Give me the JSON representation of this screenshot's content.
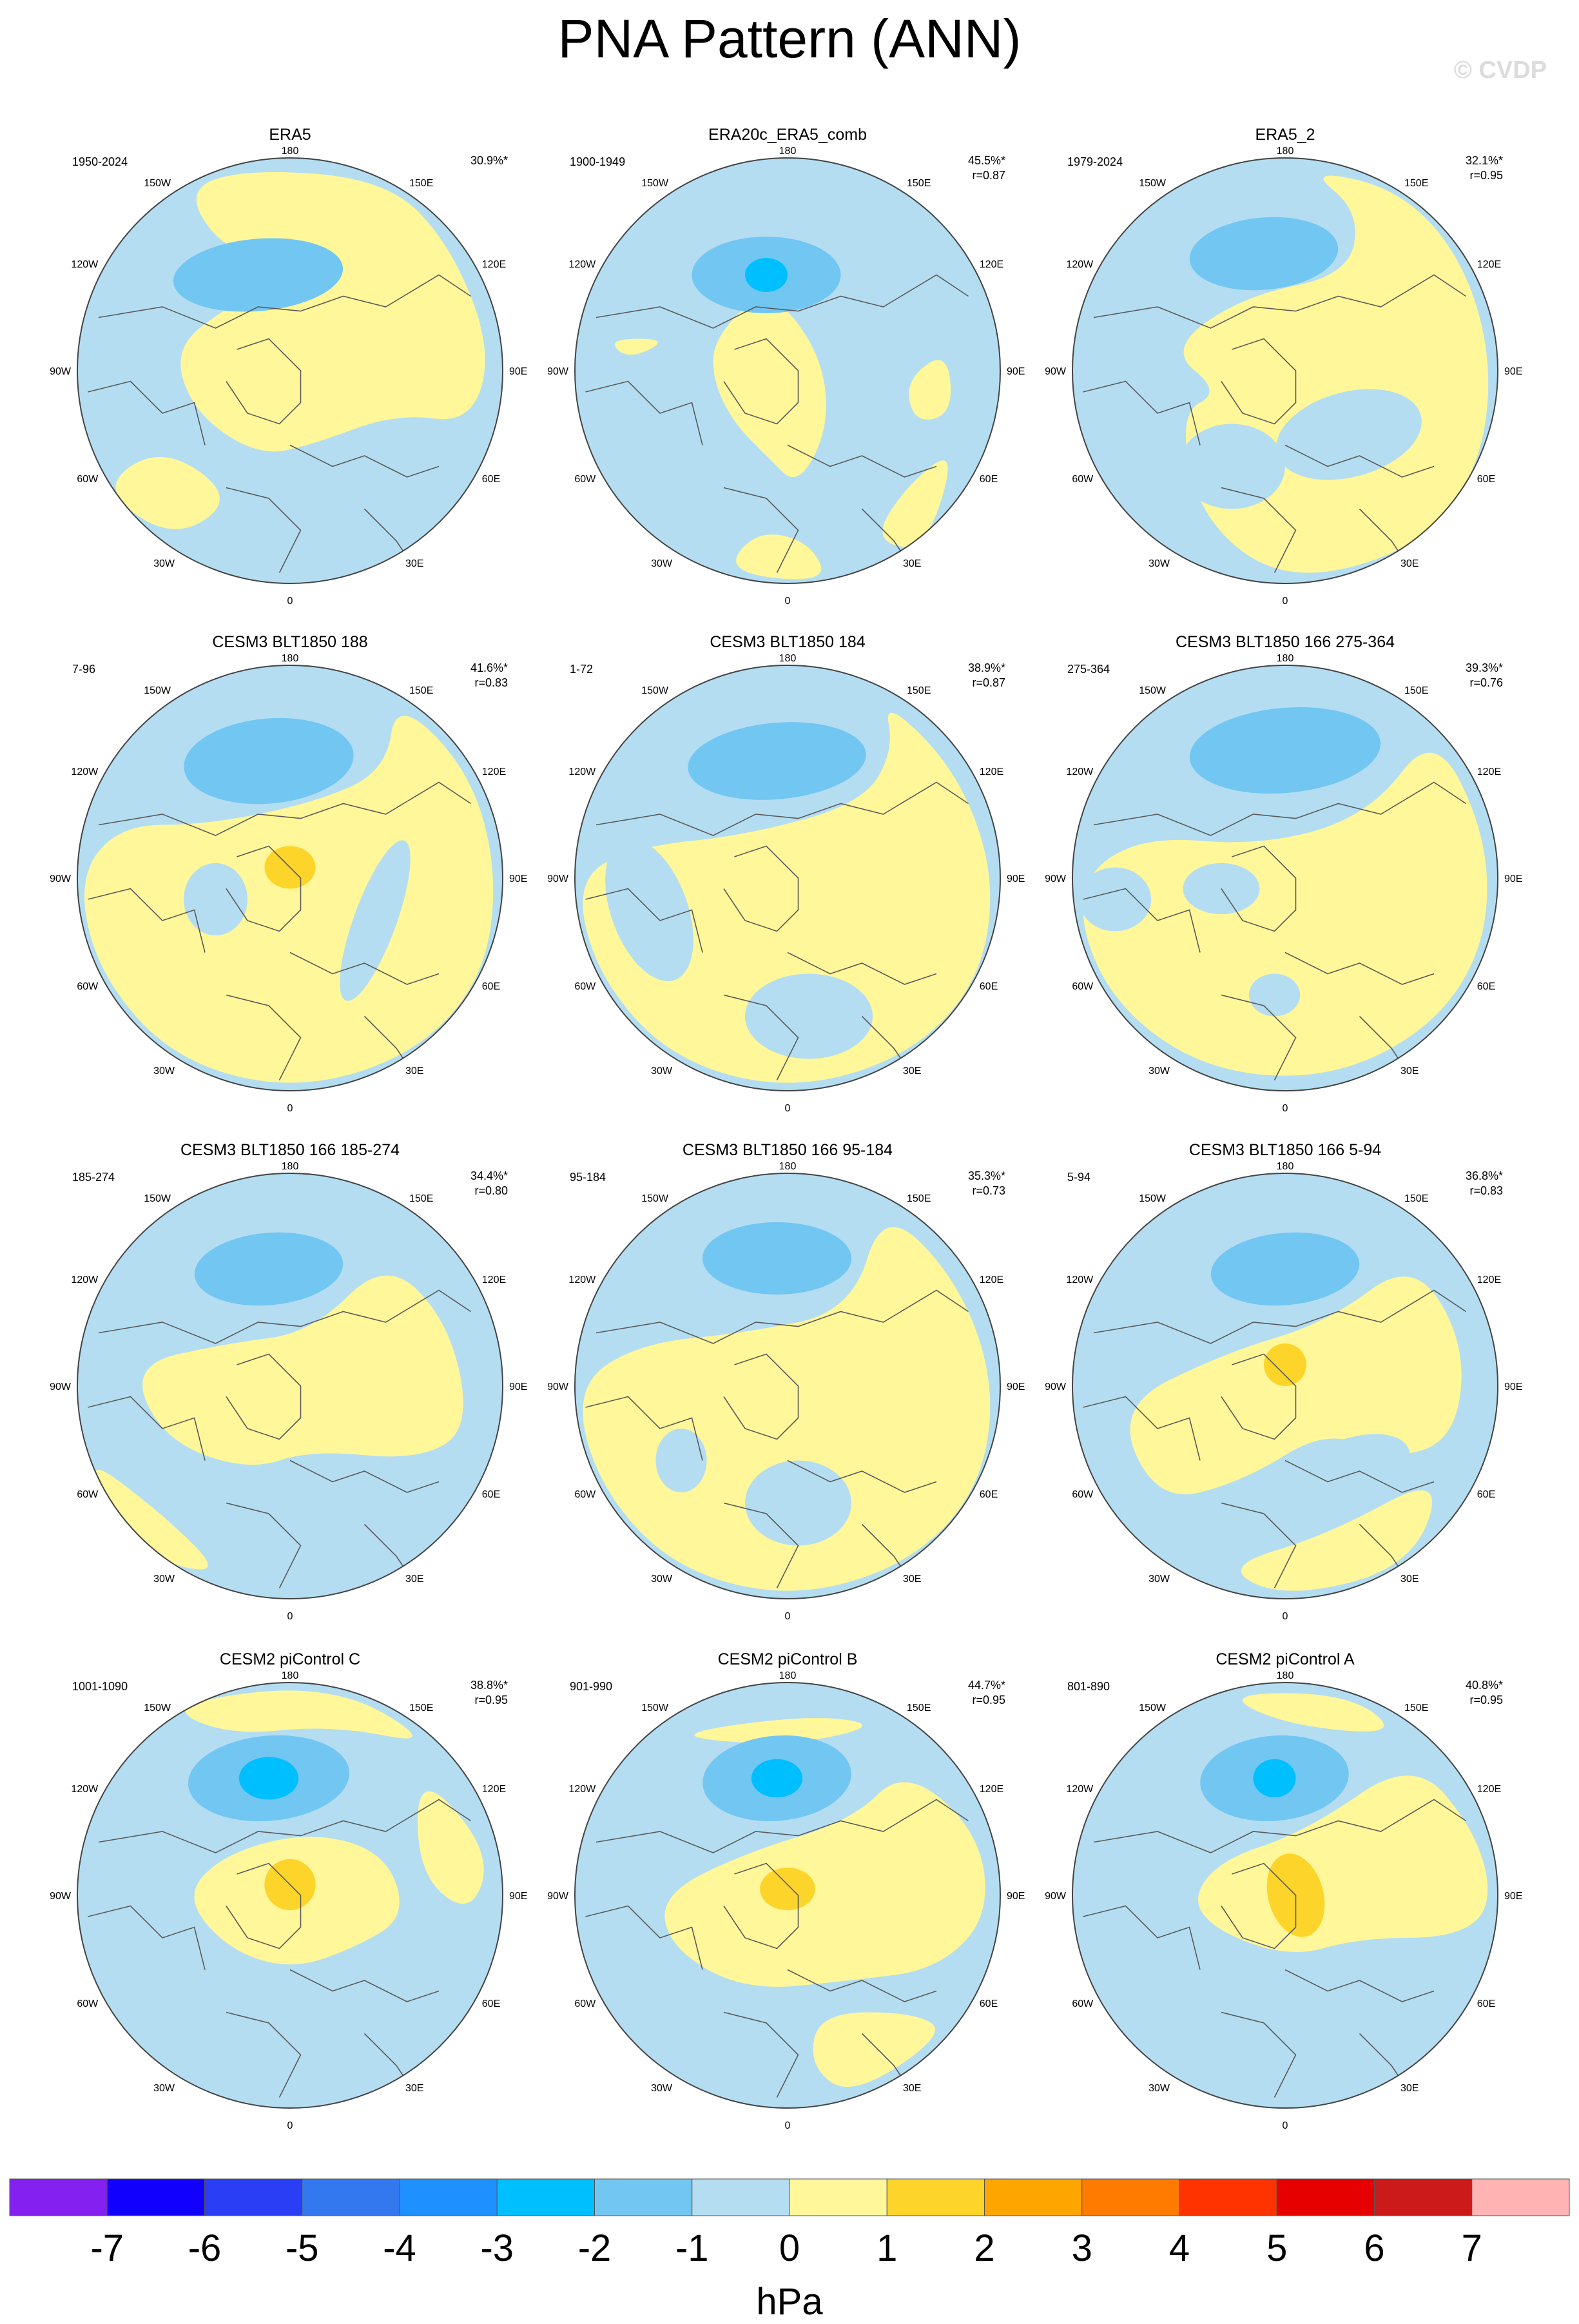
{
  "title": "PNA Pattern (ANN)",
  "watermark": "© CVDP",
  "colors": {
    "neg4": "#1e90ff",
    "neg3": "#00bfff",
    "neg2": "#72c6f2",
    "neg1": "#b4ddf2",
    "pos0": "#fff799",
    "pos1": "#fdd52a",
    "pos2": "#ffa500",
    "coast": "#5a5a5a"
  },
  "colorbar": {
    "colors": [
      "#8420f0",
      "#1200ff",
      "#2a3ff5",
      "#3478f0",
      "#1e90ff",
      "#00bfff",
      "#72c6f2",
      "#b4ddf2",
      "#fff799",
      "#fdd52a",
      "#ffa500",
      "#ff7b00",
      "#ff3300",
      "#e60000",
      "#cc1a1a",
      "#ffb3b3"
    ],
    "labels": [
      "-7",
      "-6",
      "-5",
      "-4",
      "-3",
      "-2",
      "-1",
      "0",
      "1",
      "2",
      "3",
      "4",
      "5",
      "6",
      "7"
    ],
    "units": "hPa"
  },
  "lon_labels": {
    "top": "180",
    "bottom": "0",
    "left_top": "150W",
    "right_top": "150E",
    "left_upper": "120W",
    "right_upper": "120E",
    "left_mid": "90W",
    "right_mid": "90E",
    "left_lower": "60W",
    "right_lower": "60E",
    "left_bottom": "30W",
    "right_bottom": "30E"
  },
  "chart_data": [
    {
      "type": "map",
      "title": "ERA5",
      "years": "1950-2024",
      "pct": "30.9%*",
      "r": "",
      "variant": "obs"
    },
    {
      "type": "map",
      "title": "ERA20c_ERA5_comb",
      "years": "1900-1949",
      "pct": "45.5%*",
      "r": "r=0.87",
      "variant": "era20"
    },
    {
      "type": "map",
      "title": "ERA5_2",
      "years": "1979-2024",
      "pct": "32.1%*",
      "r": "r=0.95",
      "variant": "obs2"
    },
    {
      "type": "map",
      "title": "CESM3 BLT1850 188",
      "years": "7-96",
      "pct": "41.6%*",
      "r": "r=0.83",
      "variant": "cesm3a"
    },
    {
      "type": "map",
      "title": "CESM3 BLT1850 184",
      "years": "1-72",
      "pct": "38.9%*",
      "r": "r=0.87",
      "variant": "cesm3b"
    },
    {
      "type": "map",
      "title": "CESM3 BLT1850 166 275-364",
      "years": "275-364",
      "pct": "39.3%*",
      "r": "r=0.76",
      "variant": "cesm3c"
    },
    {
      "type": "map",
      "title": "CESM3 BLT1850 166 185-274",
      "years": "185-274",
      "pct": "34.4%*",
      "r": "r=0.80",
      "variant": "cesm3d"
    },
    {
      "type": "map",
      "title": "CESM3 BLT1850 166 95-184",
      "years": "95-184",
      "pct": "35.3%*",
      "r": "r=0.73",
      "variant": "cesm3e"
    },
    {
      "type": "map",
      "title": "CESM3 BLT1850 166 5-94",
      "years": "5-94",
      "pct": "36.8%*",
      "r": "r=0.83",
      "variant": "cesm3f"
    },
    {
      "type": "map",
      "title": "CESM2 piControl C",
      "years": "1001-1090",
      "pct": "38.8%*",
      "r": "r=0.95",
      "variant": "cesm2c"
    },
    {
      "type": "map",
      "title": "CESM2 piControl B",
      "years": "901-990",
      "pct": "44.7%*",
      "r": "r=0.95",
      "variant": "cesm2b"
    },
    {
      "type": "map",
      "title": "CESM2 piControl A",
      "years": "801-890",
      "pct": "40.8%*",
      "r": "r=0.95",
      "variant": "cesm2a"
    }
  ]
}
